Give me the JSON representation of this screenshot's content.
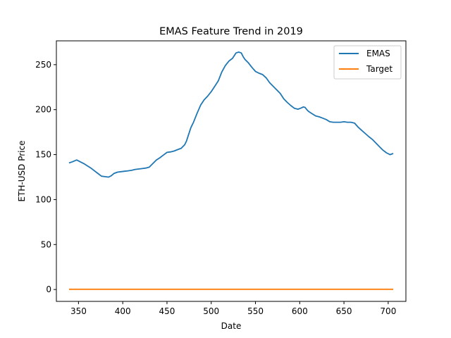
{
  "chart_data": {
    "type": "line",
    "title": "EMAS Feature Trend in 2019",
    "xlabel": "Date",
    "ylabel": "ETH-USD Price",
    "xlim": [
      325,
      720
    ],
    "ylim": [
      -13.2,
      276.5
    ],
    "xticks": [
      350,
      400,
      450,
      500,
      550,
      600,
      650,
      700
    ],
    "yticks": [
      0,
      50,
      100,
      150,
      200,
      250
    ],
    "grid": false,
    "legend_position": "top-right",
    "series": [
      {
        "name": "EMAS",
        "color": "#1f77b4",
        "x": [
          340,
          343,
          348,
          352,
          356,
          360,
          364,
          368,
          372,
          376,
          380,
          384,
          387,
          390,
          394,
          398,
          402,
          406,
          410,
          414,
          418,
          422,
          426,
          430,
          434,
          438,
          442,
          446,
          450,
          454,
          458,
          462,
          466,
          470,
          472,
          474,
          477,
          480,
          484,
          488,
          492,
          496,
          500,
          504,
          508,
          512,
          516,
          520,
          524,
          528,
          531,
          534,
          536,
          538,
          542,
          546,
          550,
          554,
          558,
          562,
          566,
          570,
          574,
          578,
          582,
          586,
          590,
          594,
          598,
          602,
          604,
          606,
          608,
          610,
          614,
          618,
          622,
          626,
          630,
          634,
          638,
          642,
          646,
          650,
          654,
          658,
          662,
          666,
          670,
          674,
          678,
          682,
          686,
          690,
          694,
          698,
          702,
          705
        ],
        "values": [
          141,
          142,
          144,
          142,
          140,
          137.5,
          135,
          132,
          129,
          126,
          125.5,
          125,
          126.5,
          129,
          130.5,
          131,
          131.5,
          132,
          132.5,
          133.5,
          134,
          134.5,
          135,
          136,
          140,
          144,
          146.5,
          149.5,
          152.5,
          153,
          154,
          155.5,
          157,
          161,
          165,
          171,
          180,
          186,
          196,
          205,
          211,
          215,
          220,
          226,
          232,
          242,
          249,
          254,
          257,
          263,
          264,
          263,
          259,
          256,
          252,
          247,
          242.5,
          240.5,
          239,
          235.5,
          230,
          226,
          222,
          218,
          212,
          208,
          204.5,
          201.5,
          200.5,
          202,
          203,
          202.5,
          200,
          198,
          195.5,
          193,
          192,
          190.5,
          189,
          186.5,
          186,
          186,
          186,
          186.5,
          186,
          186,
          185,
          180.5,
          177,
          173.5,
          170,
          167,
          163,
          159,
          155,
          152,
          150,
          151
        ]
      },
      {
        "name": "Target",
        "color": "#ff7f0e",
        "x": [
          340,
          400,
          450,
          500,
          550,
          600,
          650,
          705
        ],
        "values": [
          0.3,
          0.3,
          0.3,
          0.3,
          0.3,
          0.3,
          0.3,
          0.3
        ]
      }
    ]
  }
}
